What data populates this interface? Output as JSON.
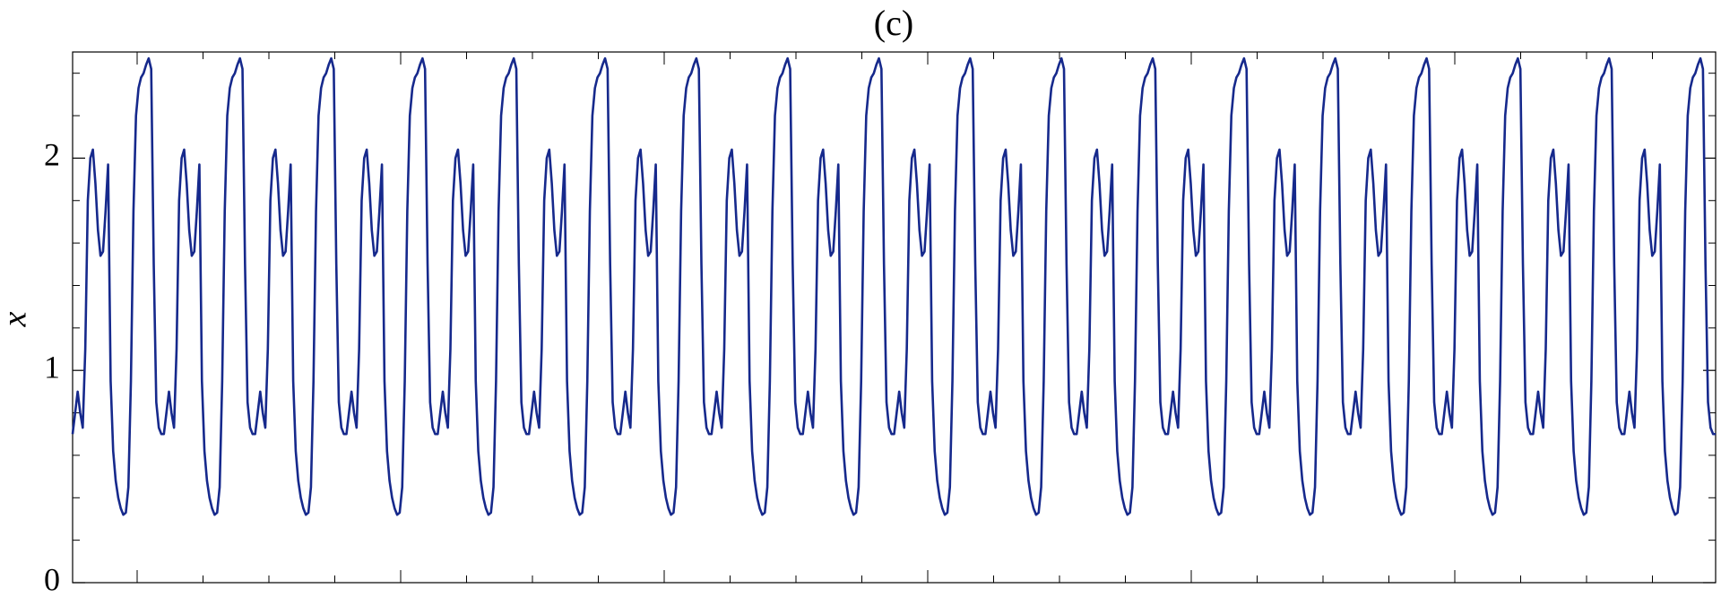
{
  "chart_data": {
    "type": "line",
    "title": "(c)",
    "y_label": "x",
    "ylim": [
      0,
      2.5
    ],
    "yticks": [
      0,
      1,
      2
    ],
    "yminorticks": [
      0.2,
      0.4,
      0.6,
      0.8,
      1.2,
      1.4,
      1.6,
      1.8,
      2.2,
      2.4
    ],
    "color": "#16298c",
    "values": [
      0.7,
      0.8,
      0.9,
      0.8,
      0.73,
      1.1,
      1.8,
      2,
      2.04,
      1.88,
      1.66,
      1.54,
      1.56,
      1.75,
      1.97,
      0.95,
      0.62,
      0.48,
      0.4,
      0.35,
      0.32,
      0.33,
      0.45,
      0.95,
      1.75,
      2.2,
      2.33,
      2.38,
      2.4,
      2.44,
      2.47,
      2.42,
      1.5,
      0.85,
      0.73,
      0.7,
      0.7,
      0.8,
      0.9,
      0.8,
      0.73,
      1.1,
      1.8,
      2,
      2.04,
      1.88,
      1.66,
      1.54,
      1.56,
      1.75,
      1.97,
      0.95,
      0.62,
      0.48,
      0.4,
      0.35,
      0.32,
      0.33,
      0.45,
      0.95,
      1.75,
      2.2,
      2.33,
      2.38,
      2.4,
      2.44,
      2.47,
      2.42,
      1.5,
      0.85,
      0.73,
      0.7,
      0.7,
      0.8,
      0.9,
      0.8,
      0.73,
      1.1,
      1.8,
      2,
      2.04,
      1.88,
      1.66,
      1.54,
      1.56,
      1.75,
      1.97,
      0.95,
      0.62,
      0.48,
      0.4,
      0.35,
      0.32,
      0.33,
      0.45,
      0.95,
      1.75,
      2.2,
      2.33,
      2.38,
      2.4,
      2.44,
      2.47,
      2.42,
      1.5,
      0.85,
      0.73,
      0.7,
      0.7,
      0.8,
      0.9,
      0.8,
      0.73,
      1.1,
      1.8,
      2,
      2.04,
      1.88,
      1.66,
      1.54,
      1.56,
      1.75,
      1.97,
      0.95,
      0.62,
      0.48,
      0.4,
      0.35,
      0.32,
      0.33,
      0.45,
      0.95,
      1.75,
      2.2,
      2.33,
      2.38,
      2.4,
      2.44,
      2.47,
      2.42,
      1.5,
      0.85,
      0.73,
      0.7,
      0.7,
      0.8,
      0.9,
      0.8,
      0.73,
      1.1,
      1.8,
      2,
      2.04,
      1.88,
      1.66,
      1.54,
      1.56,
      1.75,
      1.97,
      0.95,
      0.62,
      0.48,
      0.4,
      0.35,
      0.32,
      0.33,
      0.45,
      0.95,
      1.75,
      2.2,
      2.33,
      2.38,
      2.4,
      2.44,
      2.47,
      2.42,
      1.5,
      0.85,
      0.73,
      0.7,
      0.7,
      0.8,
      0.9,
      0.8,
      0.73,
      1.1,
      1.8,
      2,
      2.04,
      1.88,
      1.66,
      1.54,
      1.56,
      1.75,
      1.97,
      0.95,
      0.62,
      0.48,
      0.4,
      0.35,
      0.32,
      0.33,
      0.45,
      0.95,
      1.75,
      2.2,
      2.33,
      2.38,
      2.4,
      2.44,
      2.47,
      2.42,
      1.5,
      0.85,
      0.73,
      0.7,
      0.7,
      0.8,
      0.9,
      0.8,
      0.73,
      1.1,
      1.8,
      2,
      2.04,
      1.88,
      1.66,
      1.54,
      1.56,
      1.75,
      1.97,
      0.95,
      0.62,
      0.48,
      0.4,
      0.35,
      0.32,
      0.33,
      0.45,
      0.95,
      1.75,
      2.2,
      2.33,
      2.38,
      2.4,
      2.44,
      2.47,
      2.42,
      1.5,
      0.85,
      0.73,
      0.7,
      0.7,
      0.8,
      0.9,
      0.8,
      0.73,
      1.1,
      1.8,
      2,
      2.04,
      1.88,
      1.66,
      1.54,
      1.56,
      1.75,
      1.97,
      0.95,
      0.62,
      0.48,
      0.4,
      0.35,
      0.32,
      0.33,
      0.45,
      0.95,
      1.75,
      2.2,
      2.33,
      2.38,
      2.4,
      2.44,
      2.47,
      2.42,
      1.5,
      0.85,
      0.73,
      0.7,
      0.7,
      0.8,
      0.9,
      0.8,
      0.73,
      1.1,
      1.8,
      2,
      2.04,
      1.88,
      1.66,
      1.54,
      1.56,
      1.75,
      1.97,
      0.95,
      0.62,
      0.48,
      0.4,
      0.35,
      0.32,
      0.33,
      0.45,
      0.95,
      1.75,
      2.2,
      2.33,
      2.38,
      2.4,
      2.44,
      2.47,
      2.42,
      1.5,
      0.85,
      0.73,
      0.7,
      0.7,
      0.8,
      0.9,
      0.8,
      0.73,
      1.1,
      1.8,
      2,
      2.04,
      1.88,
      1.66,
      1.54,
      1.56,
      1.75,
      1.97,
      0.95,
      0.62,
      0.48,
      0.4,
      0.35,
      0.32,
      0.33,
      0.45,
      0.95,
      1.75,
      2.2,
      2.33,
      2.38,
      2.4,
      2.44,
      2.47,
      2.42,
      1.5,
      0.85,
      0.73,
      0.7,
      0.7,
      0.8,
      0.9,
      0.8,
      0.73,
      1.1,
      1.8,
      2,
      2.04,
      1.88,
      1.66,
      1.54,
      1.56,
      1.75,
      1.97,
      0.95,
      0.62,
      0.48,
      0.4,
      0.35,
      0.32,
      0.33,
      0.45,
      0.95,
      1.75,
      2.2,
      2.33,
      2.38,
      2.4,
      2.44,
      2.47,
      2.42,
      1.5,
      0.85,
      0.73,
      0.7,
      0.7,
      0.8,
      0.9,
      0.8,
      0.73,
      1.1,
      1.8,
      2,
      2.04,
      1.88,
      1.66,
      1.54,
      1.56,
      1.75,
      1.97,
      0.95,
      0.62,
      0.48,
      0.4,
      0.35,
      0.32,
      0.33,
      0.45,
      0.95,
      1.75,
      2.2,
      2.33,
      2.38,
      2.4,
      2.44,
      2.47,
      2.42,
      1.5,
      0.85,
      0.73,
      0.7,
      0.7,
      0.8,
      0.9,
      0.8,
      0.73,
      1.1,
      1.8,
      2,
      2.04,
      1.88,
      1.66,
      1.54,
      1.56,
      1.75,
      1.97,
      0.95,
      0.62,
      0.48,
      0.4,
      0.35,
      0.32,
      0.33,
      0.45,
      0.95,
      1.75,
      2.2,
      2.33,
      2.38,
      2.4,
      2.44,
      2.47,
      2.42,
      1.5,
      0.85,
      0.73,
      0.7,
      0.7,
      0.8,
      0.9,
      0.8,
      0.73,
      1.1,
      1.8,
      2,
      2.04,
      1.88,
      1.66,
      1.54,
      1.56,
      1.75,
      1.97,
      0.95,
      0.62,
      0.48,
      0.4,
      0.35,
      0.32,
      0.33,
      0.45,
      0.95,
      1.75,
      2.2,
      2.33,
      2.38,
      2.4,
      2.44,
      2.47,
      2.42,
      1.5,
      0.85,
      0.73,
      0.7,
      0.7,
      0.8,
      0.9,
      0.8,
      0.73,
      1.1,
      1.8,
      2,
      2.04,
      1.88,
      1.66,
      1.54,
      1.56,
      1.75,
      1.97,
      0.95,
      0.62,
      0.48,
      0.4,
      0.35,
      0.32,
      0.33,
      0.45,
      0.95,
      1.75,
      2.2,
      2.33,
      2.38,
      2.4,
      2.44,
      2.47,
      2.42,
      1.5,
      0.85,
      0.73,
      0.7,
      0.7,
      0.8,
      0.9,
      0.8,
      0.73,
      1.1,
      1.8,
      2,
      2.04,
      1.88,
      1.66,
      1.54,
      1.56,
      1.75,
      1.97,
      0.95,
      0.62,
      0.48,
      0.4,
      0.35,
      0.32,
      0.33,
      0.45,
      0.95,
      1.75,
      2.2,
      2.33,
      2.38,
      2.4,
      2.44,
      2.47,
      2.42,
      1.5,
      0.85,
      0.73,
      0.7,
      0.7,
      0.8,
      0.9,
      0.8,
      0.73,
      1.1,
      1.8,
      2,
      2.04,
      1.88,
      1.66,
      1.54,
      1.56,
      1.75,
      1.97,
      0.95,
      0.62,
      0.48,
      0.4,
      0.35,
      0.32,
      0.33,
      0.45,
      0.95,
      1.75,
      2.2,
      2.33,
      2.38,
      2.4,
      2.44,
      2.47,
      2.42,
      1.5,
      0.85,
      0.73,
      0.7,
      0.7,
      0.8,
      0.9,
      0.8,
      0.73,
      1.1,
      1.8,
      2,
      2.04,
      1.88,
      1.66,
      1.54,
      1.56,
      1.75,
      1.97,
      0.95,
      0.62,
      0.48,
      0.4,
      0.35,
      0.32,
      0.33,
      0.45,
      0.95,
      1.75,
      2.2,
      2.33,
      2.38,
      2.4,
      2.44,
      2.47,
      2.42,
      1.5,
      0.85,
      0.73,
      0.7,
      0.7
    ]
  }
}
